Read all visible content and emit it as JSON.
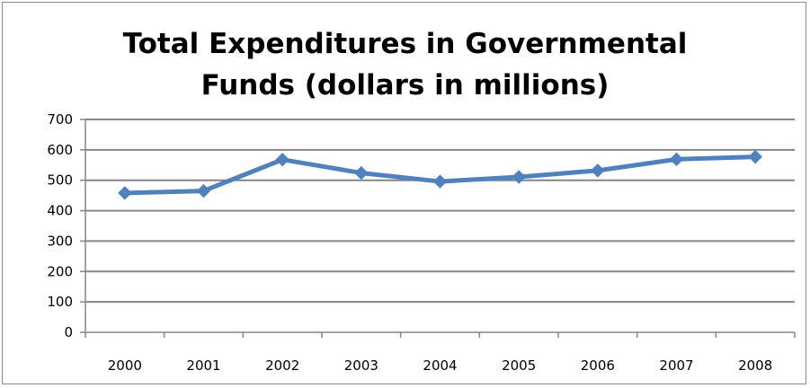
{
  "chart_data": {
    "type": "line",
    "title_lines": [
      "Total Expenditures in Governmental",
      "Funds (dollars in millions)"
    ],
    "xlabel": "",
    "ylabel": "",
    "categories": [
      "2000",
      "2001",
      "2002",
      "2003",
      "2004",
      "2005",
      "2006",
      "2007",
      "2008"
    ],
    "series": [
      {
        "values": [
          458,
          465,
          568,
          524,
          496,
          511,
          532,
          569,
          577
        ]
      }
    ],
    "ylim": [
      0,
      700
    ],
    "yticks": [
      0,
      100,
      200,
      300,
      400,
      500,
      600,
      700
    ],
    "grid": true,
    "legend": "none",
    "colors": {
      "series": "#4f81bd",
      "grid": "#868686",
      "axis": "#868686"
    }
  }
}
